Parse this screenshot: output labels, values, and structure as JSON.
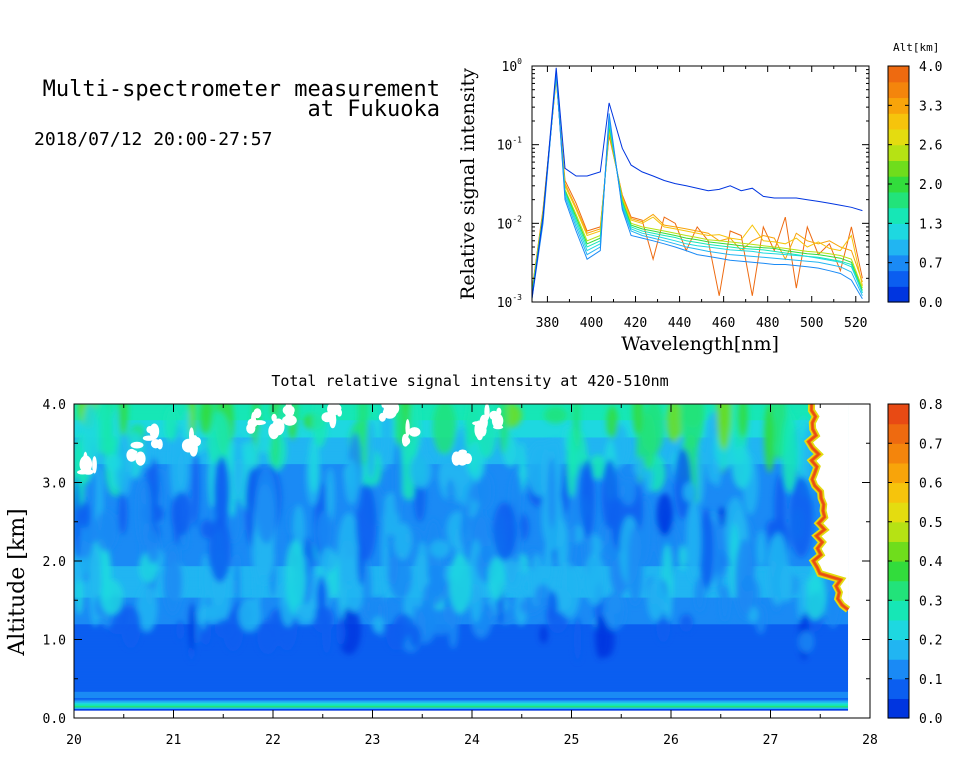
{
  "header": {
    "title_line1": "Multi-spectrometer measurement",
    "title_line2": "at Fukuoka",
    "period": "2018/07/12 20:00-27:57"
  },
  "chart_data": [
    {
      "type": "line",
      "xlabel": "Wavelength[nm]",
      "ylabel": "Relative signal intensity",
      "xlim": [
        373,
        526
      ],
      "ylim": [
        0.001,
        1
      ],
      "yscale": "log",
      "x_ticks": [
        "380",
        "400",
        "420",
        "440",
        "460",
        "480",
        "500",
        "520"
      ],
      "y_ticks": [
        {
          "base": "10",
          "exp": "-3",
          "value": 0.001
        },
        {
          "base": "10",
          "exp": "-2",
          "value": 0.01
        },
        {
          "base": "10",
          "exp": "-1",
          "value": 0.1
        },
        {
          "base": "10",
          "exp": "0",
          "value": 1
        }
      ],
      "colorbar": {
        "title": "Alt[km]",
        "ticks": [
          "0.0",
          "0.7",
          "1.3",
          "2.0",
          "2.6",
          "3.3",
          "4.0"
        ],
        "colors": [
          "#0035e0",
          "#0b5ef0",
          "#1a8af5",
          "#21b5f2",
          "#1ed8e0",
          "#16e7b6",
          "#22e37a",
          "#32dc3c",
          "#6fdd1c",
          "#b6e214",
          "#e4dc10",
          "#f6c40c",
          "#f8a40a",
          "#f4850c",
          "#ee6a10"
        ]
      },
      "x": [
        373,
        378,
        384,
        388,
        393,
        398,
        404,
        408,
        414,
        418,
        423,
        428,
        433,
        438,
        443,
        448,
        453,
        458,
        463,
        468,
        473,
        478,
        483,
        488,
        493,
        498,
        503,
        508,
        513,
        518,
        523
      ],
      "series": [
        {
          "color": "#0035e0",
          "values": [
            0.0011,
            0.012,
            0.95,
            0.05,
            0.04,
            0.04,
            0.045,
            0.34,
            0.09,
            0.055,
            0.045,
            0.04,
            0.035,
            0.032,
            0.03,
            0.028,
            0.026,
            0.027,
            0.03,
            0.026,
            0.028,
            0.022,
            0.021,
            0.021,
            0.021,
            0.02,
            0.019,
            0.018,
            0.017,
            0.016,
            0.0145
          ]
        },
        {
          "color": "#1a8af5",
          "values": [
            0.0011,
            0.01,
            0.85,
            0.02,
            0.008,
            0.0035,
            0.0045,
            0.25,
            0.015,
            0.007,
            0.0065,
            0.006,
            0.0055,
            0.005,
            0.0045,
            0.004,
            0.0038,
            0.0036,
            0.0034,
            0.0033,
            0.0032,
            0.0031,
            0.003,
            0.003,
            0.0029,
            0.0028,
            0.0027,
            0.0025,
            0.0023,
            0.0019,
            0.0011
          ]
        },
        {
          "color": "#21b5f2",
          "values": [
            0.0012,
            0.011,
            0.82,
            0.022,
            0.009,
            0.004,
            0.005,
            0.22,
            0.016,
            0.008,
            0.007,
            0.0065,
            0.006,
            0.0055,
            0.005,
            0.0047,
            0.0044,
            0.0042,
            0.004,
            0.0039,
            0.0038,
            0.0037,
            0.0036,
            0.0035,
            0.0034,
            0.0033,
            0.0032,
            0.003,
            0.0028,
            0.0024,
            0.0012
          ]
        },
        {
          "color": "#1ed8e0",
          "values": [
            0.0012,
            0.012,
            0.8,
            0.024,
            0.01,
            0.0045,
            0.0055,
            0.2,
            0.017,
            0.0085,
            0.0075,
            0.007,
            0.0065,
            0.006,
            0.0055,
            0.0052,
            0.005,
            0.0048,
            0.0046,
            0.0045,
            0.0044,
            0.0042,
            0.0041,
            0.004,
            0.0039,
            0.0038,
            0.0036,
            0.0034,
            0.0032,
            0.0028,
            0.0013
          ]
        },
        {
          "color": "#16e7b6",
          "values": [
            0.0012,
            0.012,
            0.78,
            0.025,
            0.011,
            0.005,
            0.006,
            0.19,
            0.018,
            0.009,
            0.008,
            0.0075,
            0.007,
            0.0066,
            0.006,
            0.0057,
            0.0054,
            0.0052,
            0.005,
            0.0048,
            0.0047,
            0.0046,
            0.0044,
            0.0042,
            0.004,
            0.0038,
            0.0037,
            0.0035,
            0.0033,
            0.003,
            0.0013
          ]
        },
        {
          "color": "#32dc3c",
          "values": [
            0.0013,
            0.013,
            0.76,
            0.026,
            0.012,
            0.0055,
            0.0065,
            0.17,
            0.019,
            0.0095,
            0.0085,
            0.008,
            0.0075,
            0.007,
            0.0065,
            0.0062,
            0.0058,
            0.0056,
            0.0054,
            0.0052,
            0.005,
            0.0049,
            0.0048,
            0.0045,
            0.0043,
            0.0041,
            0.004,
            0.0038,
            0.0036,
            0.0032,
            0.0014
          ]
        },
        {
          "color": "#b6e214",
          "values": [
            0.0013,
            0.013,
            0.74,
            0.027,
            0.013,
            0.006,
            0.007,
            0.16,
            0.02,
            0.01,
            0.009,
            0.0085,
            0.008,
            0.0075,
            0.007,
            0.0066,
            0.0062,
            0.006,
            0.0058,
            0.0056,
            0.0054,
            0.0052,
            0.005,
            0.0048,
            0.0046,
            0.0044,
            0.0043,
            0.0041,
            0.0039,
            0.0035,
            0.0015
          ]
        },
        {
          "color": "#f6c40c",
          "values": [
            0.0013,
            0.014,
            0.72,
            0.03,
            0.015,
            0.007,
            0.008,
            0.15,
            0.021,
            0.011,
            0.01,
            0.012,
            0.009,
            0.0085,
            0.008,
            0.0075,
            0.007,
            0.0072,
            0.0065,
            0.0062,
            0.0095,
            0.006,
            0.0058,
            0.0055,
            0.0065,
            0.005,
            0.0058,
            0.0048,
            0.0045,
            0.007,
            0.0016
          ]
        },
        {
          "color": "#f8a40a",
          "values": [
            0.0014,
            0.014,
            0.7,
            0.032,
            0.016,
            0.0075,
            0.0085,
            0.14,
            0.022,
            0.0115,
            0.0105,
            0.013,
            0.0095,
            0.009,
            0.0085,
            0.008,
            0.0075,
            0.006,
            0.0065,
            0.0045,
            0.006,
            0.007,
            0.0065,
            0.0035,
            0.0075,
            0.006,
            0.0055,
            0.006,
            0.005,
            0.0045,
            0.0018
          ]
        },
        {
          "color": "#ee6a10",
          "values": [
            0.0014,
            0.015,
            0.68,
            0.035,
            0.018,
            0.008,
            0.009,
            0.13,
            0.023,
            0.012,
            0.011,
            0.0035,
            0.012,
            0.01,
            0.0045,
            0.009,
            0.006,
            0.0012,
            0.008,
            0.007,
            0.0012,
            0.009,
            0.0045,
            0.012,
            0.0015,
            0.009,
            0.004,
            0.0055,
            0.0025,
            0.009,
            0.002
          ]
        }
      ]
    },
    {
      "type": "heatmap",
      "title": "Total relative signal intensity at 420-510nm",
      "ylabel": "Altitude [km]",
      "xlim": [
        20,
        28
      ],
      "ylim": [
        0,
        4
      ],
      "x_ticks": [
        "20",
        "21",
        "22",
        "23",
        "24",
        "25",
        "26",
        "27",
        "28"
      ],
      "y_ticks": [
        "0.0",
        "1.0",
        "2.0",
        "3.0",
        "4.0"
      ],
      "data_end_x": 27.78,
      "altitude_profile": {
        "altitude_km": [
          0.0,
          0.12,
          0.15,
          0.2,
          0.25,
          0.3,
          0.4,
          1.0,
          1.3,
          1.7,
          2.2,
          2.6,
          3.0,
          3.5,
          4.0
        ],
        "value": [
          0.0,
          0.05,
          0.35,
          0.18,
          0.08,
          0.14,
          0.06,
          0.06,
          0.12,
          0.17,
          0.13,
          0.1,
          0.12,
          0.18,
          0.3
        ]
      },
      "colorbar": {
        "ticks": [
          "0.0",
          "0.1",
          "0.2",
          "0.3",
          "0.4",
          "0.5",
          "0.6",
          "0.7",
          "0.8"
        ],
        "colors": [
          "#0035e0",
          "#0b5ef0",
          "#1a8af5",
          "#21b5f2",
          "#1ed8e0",
          "#16e7b6",
          "#22e37a",
          "#32dc3c",
          "#6fdd1c",
          "#b6e214",
          "#e4dc10",
          "#f6c40c",
          "#f8a40a",
          "#f4850c",
          "#ee6a10",
          "#e84a14"
        ]
      }
    }
  ]
}
